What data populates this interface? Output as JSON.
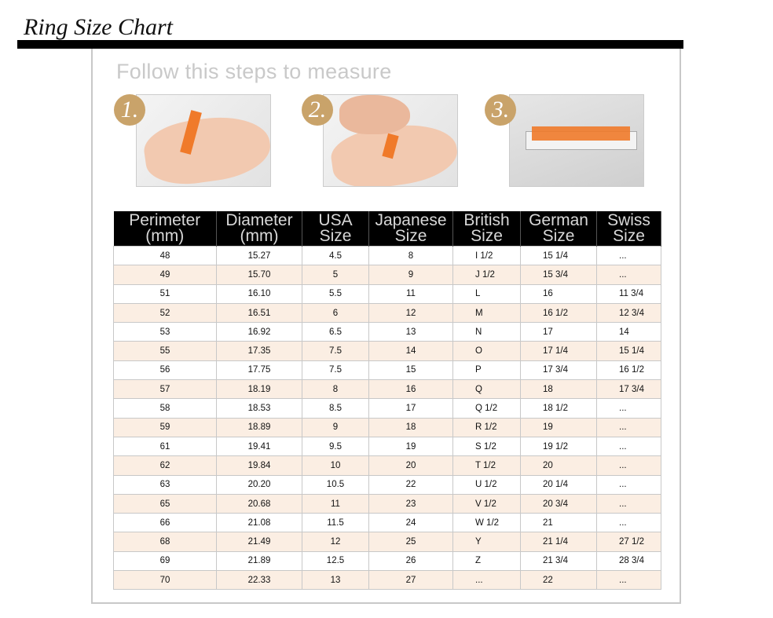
{
  "title": "Ring Size Chart",
  "steps": {
    "heading": "Follow this steps to measure",
    "items": [
      {
        "number": "1.",
        "description": "wrap tape around finger"
      },
      {
        "number": "2.",
        "description": "mark where tape overlaps"
      },
      {
        "number": "3.",
        "description": "measure tape with ruler"
      }
    ]
  },
  "colors": {
    "badge": "#c9a36a",
    "header_bg": "#000000",
    "row_alt": "#fbeee3",
    "tape": "#f07a2a"
  },
  "table": {
    "headers": [
      [
        "Perimeter",
        "(mm)"
      ],
      [
        "Diameter",
        "(mm)"
      ],
      [
        "USA",
        "Size"
      ],
      [
        "Japanese",
        "Size"
      ],
      [
        "British",
        "Size"
      ],
      [
        "German",
        "Size"
      ],
      [
        "Swiss",
        "Size"
      ]
    ],
    "rows": [
      [
        "48",
        "15.27",
        "4.5",
        "8",
        "I 1/2",
        "15 1/4",
        "..."
      ],
      [
        "49",
        "15.70",
        "5",
        "9",
        "J 1/2",
        "15 3/4",
        "..."
      ],
      [
        "51",
        "16.10",
        "5.5",
        "11",
        "L",
        "16",
        "11 3/4"
      ],
      [
        "52",
        "16.51",
        "6",
        "12",
        "M",
        "16 1/2",
        "12 3/4"
      ],
      [
        "53",
        "16.92",
        "6.5",
        "13",
        "N",
        "17",
        "14"
      ],
      [
        "55",
        "17.35",
        "7.5",
        "14",
        "O",
        "17 1/4",
        "15 1/4"
      ],
      [
        "56",
        "17.75",
        "7.5",
        "15",
        "P",
        "17 3/4",
        "16 1/2"
      ],
      [
        "57",
        "18.19",
        "8",
        "16",
        "Q",
        "18",
        "17 3/4"
      ],
      [
        "58",
        "18.53",
        "8.5",
        "17",
        "Q 1/2",
        "18 1/2",
        "..."
      ],
      [
        "59",
        "18.89",
        "9",
        "18",
        "R 1/2",
        "19",
        "..."
      ],
      [
        "61",
        "19.41",
        "9.5",
        "19",
        "S 1/2",
        "19 1/2",
        "..."
      ],
      [
        "62",
        "19.84",
        "10",
        "20",
        "T 1/2",
        "20",
        "..."
      ],
      [
        "63",
        "20.20",
        "10.5",
        "22",
        "U 1/2",
        "20 1/4",
        "..."
      ],
      [
        "65",
        "20.68",
        "11",
        "23",
        "V 1/2",
        "20 3/4",
        "..."
      ],
      [
        "66",
        "21.08",
        "11.5",
        "24",
        "W 1/2",
        "21",
        "..."
      ],
      [
        "68",
        "21.49",
        "12",
        "25",
        "Y",
        "21 1/4",
        "27 1/2"
      ],
      [
        "69",
        "21.89",
        "12.5",
        "26",
        "Z",
        "21 3/4",
        "28 3/4"
      ],
      [
        "70",
        "22.33",
        "13",
        "27",
        "...",
        "22",
        "..."
      ]
    ]
  }
}
